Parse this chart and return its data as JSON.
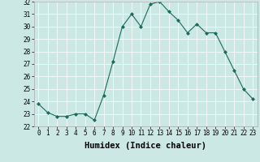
{
  "x": [
    0,
    1,
    2,
    3,
    4,
    5,
    6,
    7,
    8,
    9,
    10,
    11,
    12,
    13,
    14,
    15,
    16,
    17,
    18,
    19,
    20,
    21,
    22,
    23
  ],
  "y": [
    23.8,
    23.1,
    22.8,
    22.8,
    23.0,
    23.0,
    22.5,
    24.5,
    27.2,
    30.0,
    31.0,
    30.0,
    31.8,
    32.0,
    31.2,
    30.5,
    29.5,
    30.2,
    29.5,
    29.5,
    28.0,
    26.5,
    25.0,
    24.2
  ],
  "line_color": "#1a6b5a",
  "marker": "D",
  "marker_size": 2.0,
  "bg_color": "#cce8e4",
  "grid_color": "#ffffff",
  "xlabel": "Humidex (Indice chaleur)",
  "ylim": [
    22,
    32
  ],
  "xlim_min": -0.5,
  "xlim_max": 23.5,
  "yticks": [
    22,
    23,
    24,
    25,
    26,
    27,
    28,
    29,
    30,
    31,
    32
  ],
  "xticks": [
    0,
    1,
    2,
    3,
    4,
    5,
    6,
    7,
    8,
    9,
    10,
    11,
    12,
    13,
    14,
    15,
    16,
    17,
    18,
    19,
    20,
    21,
    22,
    23
  ],
  "tick_fontsize": 5.5,
  "xlabel_fontsize": 7.5,
  "xlabel_fontweight": "bold",
  "linewidth": 0.8,
  "grid_linewidth": 0.5,
  "spine_color": "#aaaaaa"
}
